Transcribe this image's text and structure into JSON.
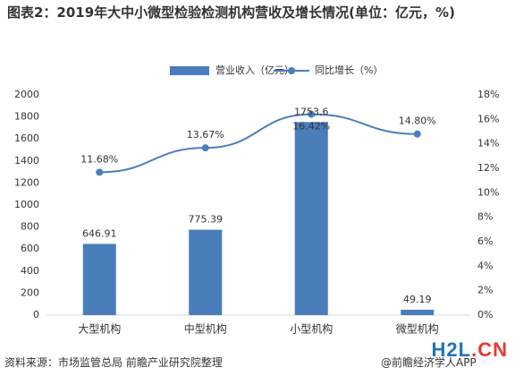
{
  "title": "图表2：2019年大中小微型检验检测机构营收及增长情况(单位：亿元，%)",
  "source": "资料来源：市场监管总局 前瞻产业研究院整理",
  "brand_footer": "@前瞻经济学人APP",
  "watermark": {
    "main": "H2L",
    "suffix": ".CN",
    "colors": {
      "main": "#1c75bc",
      "suffix": "#e8382f"
    }
  },
  "chart_data": {
    "type": "bar",
    "categories": [
      "大型机构",
      "中型机构",
      "小型机构",
      "微型机构"
    ],
    "series": [
      {
        "name": "营业收入（亿元）",
        "type": "bar",
        "axis": "left",
        "color": "#4a7ebb",
        "values": [
          646.91,
          775.39,
          1753.6,
          49.19
        ],
        "labels": [
          "646.91",
          "775.39",
          "1753.6",
          "49.19"
        ]
      },
      {
        "name": "同比增长（%）",
        "type": "line",
        "axis": "right",
        "color": "#4a7ebb",
        "values": [
          11.68,
          13.67,
          16.42,
          14.8
        ],
        "labels": [
          "11.68%",
          "13.67%",
          "16.42%",
          "14.80%"
        ]
      }
    ],
    "y_left": {
      "min": 0,
      "max": 2000,
      "ticks": [
        "0",
        "200",
        "400",
        "600",
        "800",
        "1000",
        "1200",
        "1400",
        "1600",
        "1800",
        "2000"
      ]
    },
    "y_right": {
      "min": 0,
      "max": 18,
      "ticks": [
        "0%",
        "2%",
        "4%",
        "6%",
        "8%",
        "10%",
        "12%",
        "14%",
        "16%",
        "18%"
      ]
    },
    "legend": "top-center",
    "grid": false
  }
}
